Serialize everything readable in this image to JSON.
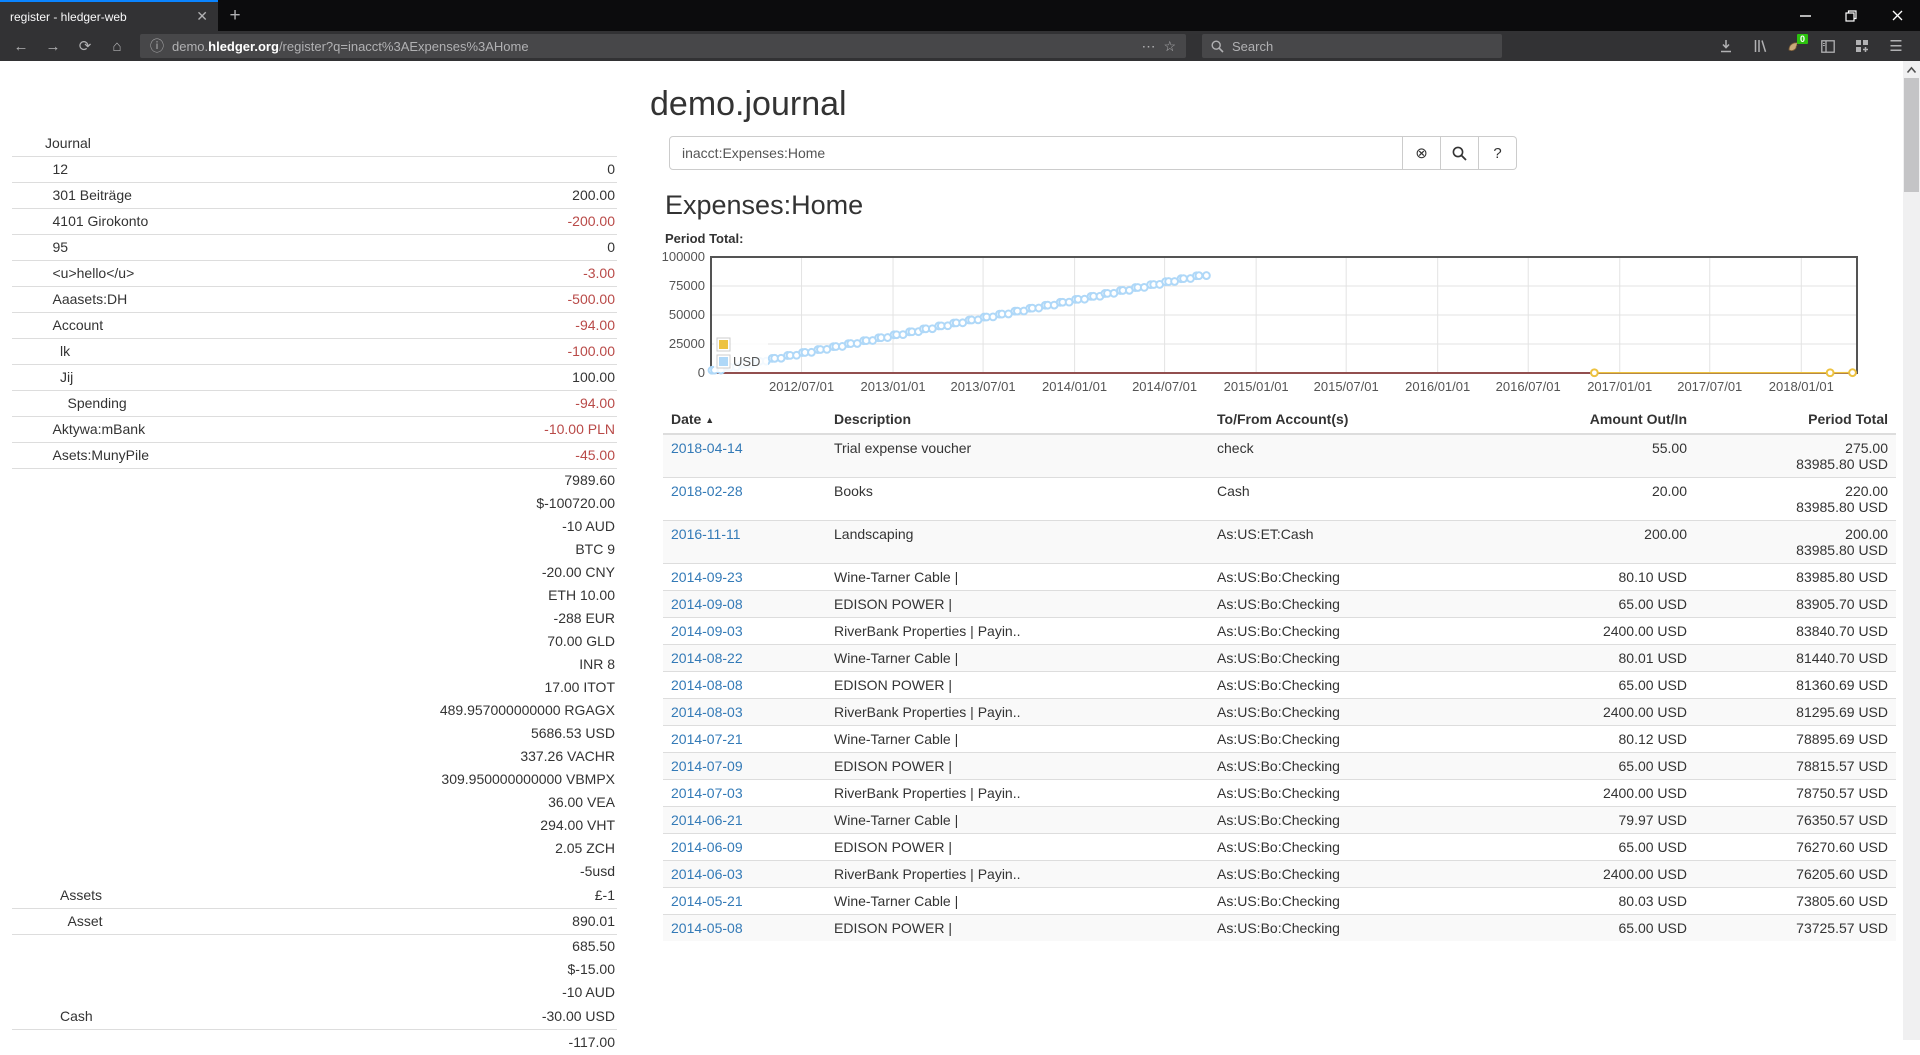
{
  "browser": {
    "tab_title": "register - hledger-web",
    "new_tab_label": "+",
    "url_scheme_prefix": "demo.",
    "url_domain": "hledger.org",
    "url_path": "/register?q=inacct%3AExpenses%3AHome",
    "search_placeholder": "Search",
    "extension_badge": "0",
    "icons": [
      "back",
      "forward",
      "reload",
      "home",
      "info",
      "overflow-dots",
      "bookmark-star",
      "download",
      "library",
      "extension",
      "sidebar",
      "grid-add",
      "menu",
      "minimize",
      "restore",
      "close"
    ]
  },
  "page": {
    "title": "demo.journal",
    "query_value": "inacct:Expenses:Home",
    "clear_button": "⊗",
    "help_button": "?",
    "heading": "Expenses:Home",
    "chart_label": "Period Total:"
  },
  "sidebar": {
    "rows": [
      {
        "label": "Journal",
        "indent": 0,
        "value": "",
        "neg": false,
        "pre": []
      },
      {
        "label": "12",
        "indent": 1,
        "value": "0",
        "neg": false,
        "pre": []
      },
      {
        "label": "301 Beiträge",
        "indent": 1,
        "value": "200.00",
        "neg": false,
        "pre": []
      },
      {
        "label": "4101 Girokonto",
        "indent": 1,
        "value": "-200.00",
        "neg": true,
        "pre": []
      },
      {
        "label": "95",
        "indent": 1,
        "value": "0",
        "neg": false,
        "pre": []
      },
      {
        "label": "<u>hello</u>",
        "indent": 1,
        "value": "-3.00",
        "neg": true,
        "pre": []
      },
      {
        "label": "Aaasets:DH",
        "indent": 1,
        "value": "-500.00",
        "neg": true,
        "pre": []
      },
      {
        "label": "Account",
        "indent": 1,
        "value": "-94.00",
        "neg": true,
        "pre": []
      },
      {
        "label": "lk",
        "indent": 2,
        "value": "-100.00",
        "neg": true,
        "pre": []
      },
      {
        "label": "Jij",
        "indent": 2,
        "value": "100.00",
        "neg": false,
        "pre": []
      },
      {
        "label": "Spending",
        "indent": 3,
        "value": "-94.00",
        "neg": true,
        "pre": []
      },
      {
        "label": "Aktywa:mBank",
        "indent": 1,
        "value": "-10.00 PLN",
        "neg": true,
        "pre": []
      },
      {
        "label": "Asets:MunyPile",
        "indent": 1,
        "value": "-45.00",
        "neg": true,
        "pre": []
      },
      {
        "label": "Assets",
        "indent": 2,
        "value": "£-1",
        "neg": false,
        "pre": [
          "7989.60",
          "$-100720.00",
          "-10 AUD",
          "BTC 9",
          "-20.00 CNY",
          "ETH 10.00",
          "-288 EUR",
          "70.00 GLD",
          "INR 8",
          "17.00 ITOT",
          "489.957000000000 RGAGX",
          "5686.53 USD",
          "337.26 VACHR",
          "309.950000000000 VBMPX",
          "36.00 VEA",
          "294.00 VHT",
          "2.05 ZCH",
          "-5usd"
        ]
      },
      {
        "label": "Asset",
        "indent": 3,
        "value": "890.01",
        "neg": false,
        "pre": []
      },
      {
        "label": "Cash",
        "indent": 2,
        "value": "-30.00 USD",
        "neg": false,
        "pre": [
          "685.50",
          "$-15.00",
          "-10 AUD"
        ]
      },
      {
        "label": "",
        "indent": 2,
        "value": "-117.00",
        "neg": false,
        "pre": [],
        "noborder": true
      }
    ]
  },
  "register": {
    "columns": [
      "Date",
      "Description",
      "To/From Account(s)",
      "Amount Out/In",
      "Period Total"
    ],
    "sort_arrow": "▲",
    "rows": [
      {
        "date": "2018-04-14",
        "desc": "Trial expense voucher",
        "acct": "check",
        "amount": "55.00",
        "period": [
          "275.00",
          "83985.80 USD"
        ]
      },
      {
        "date": "2018-02-28",
        "desc": "Books",
        "acct": "Cash",
        "amount": "20.00",
        "period": [
          "220.00",
          "83985.80 USD"
        ]
      },
      {
        "date": "2016-11-11",
        "desc": "Landscaping",
        "acct": "As:US:ET:Cash",
        "amount": "200.00",
        "period": [
          "200.00",
          "83985.80 USD"
        ]
      },
      {
        "date": "2014-09-23",
        "desc": "Wine-Tarner Cable |",
        "acct": "As:US:Bo:Checking",
        "amount": "80.10 USD",
        "period": [
          "83985.80 USD"
        ]
      },
      {
        "date": "2014-09-08",
        "desc": "EDISON POWER |",
        "acct": "As:US:Bo:Checking",
        "amount": "65.00 USD",
        "period": [
          "83905.70 USD"
        ]
      },
      {
        "date": "2014-09-03",
        "desc": "RiverBank Properties | Payin..",
        "acct": "As:US:Bo:Checking",
        "amount": "2400.00 USD",
        "period": [
          "83840.70 USD"
        ]
      },
      {
        "date": "2014-08-22",
        "desc": "Wine-Tarner Cable |",
        "acct": "As:US:Bo:Checking",
        "amount": "80.01 USD",
        "period": [
          "81440.70 USD"
        ]
      },
      {
        "date": "2014-08-08",
        "desc": "EDISON POWER |",
        "acct": "As:US:Bo:Checking",
        "amount": "65.00 USD",
        "period": [
          "81360.69 USD"
        ]
      },
      {
        "date": "2014-08-03",
        "desc": "RiverBank Properties | Payin..",
        "acct": "As:US:Bo:Checking",
        "amount": "2400.00 USD",
        "period": [
          "81295.69 USD"
        ]
      },
      {
        "date": "2014-07-21",
        "desc": "Wine-Tarner Cable |",
        "acct": "As:US:Bo:Checking",
        "amount": "80.12 USD",
        "period": [
          "78895.69 USD"
        ]
      },
      {
        "date": "2014-07-09",
        "desc": "EDISON POWER |",
        "acct": "As:US:Bo:Checking",
        "amount": "65.00 USD",
        "period": [
          "78815.57 USD"
        ]
      },
      {
        "date": "2014-07-03",
        "desc": "RiverBank Properties | Payin..",
        "acct": "As:US:Bo:Checking",
        "amount": "2400.00 USD",
        "period": [
          "78750.57 USD"
        ]
      },
      {
        "date": "2014-06-21",
        "desc": "Wine-Tarner Cable |",
        "acct": "As:US:Bo:Checking",
        "amount": "79.97 USD",
        "period": [
          "76350.57 USD"
        ]
      },
      {
        "date": "2014-06-09",
        "desc": "EDISON POWER |",
        "acct": "As:US:Bo:Checking",
        "amount": "65.00 USD",
        "period": [
          "76270.60 USD"
        ]
      },
      {
        "date": "2014-06-03",
        "desc": "RiverBank Properties | Payin..",
        "acct": "As:US:Bo:Checking",
        "amount": "2400.00 USD",
        "period": [
          "76205.60 USD"
        ]
      },
      {
        "date": "2014-05-21",
        "desc": "Wine-Tarner Cable |",
        "acct": "As:US:Bo:Checking",
        "amount": "80.03 USD",
        "period": [
          "73805.60 USD"
        ]
      },
      {
        "date": "2014-05-08",
        "desc": "EDISON POWER |",
        "acct": "As:US:Bo:Checking",
        "amount": "65.00 USD",
        "period": [
          "73725.57 USD"
        ]
      }
    ]
  },
  "chart_data": {
    "type": "line",
    "title": "Period Total:",
    "ylim": [
      0,
      100000
    ],
    "y_ticks": [
      0,
      25000,
      50000,
      75000,
      100000
    ],
    "x_range": [
      "2012-01-01",
      "2018-04-23"
    ],
    "x_ticks": [
      "2012/07/01",
      "2013/01/01",
      "2013/07/01",
      "2014/01/01",
      "2014/07/01",
      "2015/01/01",
      "2015/07/01",
      "2016/01/01",
      "2016/07/01",
      "2017/01/01",
      "2017/07/01",
      "2018/01/01"
    ],
    "grid": true,
    "legend_position": "sw",
    "series": [
      {
        "name": "zero-baseline",
        "color": "#cb4b4b",
        "in_legend": false,
        "markers": false,
        "points": [
          [
            "2012-01-01",
            0
          ],
          [
            "2018-04-23",
            0
          ]
        ]
      },
      {
        "name": "",
        "color": "#edc240",
        "in_legend": true,
        "markers": true,
        "points": [
          [
            "2016-11-11",
            200
          ],
          [
            "2018-02-28",
            220
          ],
          [
            "2018-04-14",
            275
          ]
        ]
      },
      {
        "name": "USD",
        "color": "#afd8f8",
        "in_legend": true,
        "markers": true,
        "points": [
          [
            "2012-01-03",
            2400
          ],
          [
            "2012-01-08",
            2465
          ],
          [
            "2012-01-21",
            2545
          ],
          [
            "2012-02-03",
            4945
          ],
          [
            "2012-02-08",
            5010
          ],
          [
            "2012-02-21",
            5090
          ],
          [
            "2012-03-03",
            7490
          ],
          [
            "2012-03-08",
            7555
          ],
          [
            "2012-03-21",
            7635
          ],
          [
            "2012-04-03",
            10035
          ],
          [
            "2012-04-08",
            10100
          ],
          [
            "2012-04-21",
            10180
          ],
          [
            "2012-05-03",
            12580
          ],
          [
            "2012-05-08",
            12645
          ],
          [
            "2012-05-21",
            12725
          ],
          [
            "2012-06-03",
            15125
          ],
          [
            "2012-06-08",
            15190
          ],
          [
            "2012-06-21",
            15270
          ],
          [
            "2012-07-03",
            17670
          ],
          [
            "2012-07-08",
            17735
          ],
          [
            "2012-07-21",
            17815
          ],
          [
            "2012-08-03",
            20215
          ],
          [
            "2012-08-08",
            20280
          ],
          [
            "2012-08-21",
            20360
          ],
          [
            "2012-09-03",
            22760
          ],
          [
            "2012-09-08",
            22825
          ],
          [
            "2012-09-21",
            22905
          ],
          [
            "2012-10-03",
            25305
          ],
          [
            "2012-10-08",
            25370
          ],
          [
            "2012-10-21",
            25450
          ],
          [
            "2012-11-03",
            27850
          ],
          [
            "2012-11-08",
            27915
          ],
          [
            "2012-11-21",
            27995
          ],
          [
            "2012-12-03",
            30395
          ],
          [
            "2012-12-08",
            30460
          ],
          [
            "2012-12-21",
            30540
          ],
          [
            "2013-01-03",
            32940
          ],
          [
            "2013-01-08",
            33005
          ],
          [
            "2013-01-21",
            33085
          ],
          [
            "2013-02-03",
            35485
          ],
          [
            "2013-02-08",
            35550
          ],
          [
            "2013-02-21",
            35630
          ],
          [
            "2013-03-03",
            38030
          ],
          [
            "2013-03-08",
            38095
          ],
          [
            "2013-03-21",
            38175
          ],
          [
            "2013-04-03",
            40575
          ],
          [
            "2013-04-08",
            40640
          ],
          [
            "2013-04-21",
            40720
          ],
          [
            "2013-05-03",
            43120
          ],
          [
            "2013-05-08",
            43185
          ],
          [
            "2013-05-21",
            43265
          ],
          [
            "2013-06-03",
            45665
          ],
          [
            "2013-06-08",
            45730
          ],
          [
            "2013-06-21",
            45810
          ],
          [
            "2013-07-03",
            48210
          ],
          [
            "2013-07-08",
            48275
          ],
          [
            "2013-07-21",
            48355
          ],
          [
            "2013-08-03",
            50755
          ],
          [
            "2013-08-08",
            50820
          ],
          [
            "2013-08-21",
            50900
          ],
          [
            "2013-09-03",
            53300
          ],
          [
            "2013-09-08",
            53365
          ],
          [
            "2013-09-21",
            53445
          ],
          [
            "2013-10-03",
            55845
          ],
          [
            "2013-10-08",
            55910
          ],
          [
            "2013-10-21",
            55990
          ],
          [
            "2013-11-03",
            58390
          ],
          [
            "2013-11-08",
            58455
          ],
          [
            "2013-11-21",
            58535
          ],
          [
            "2013-12-03",
            60935
          ],
          [
            "2013-12-08",
            61000
          ],
          [
            "2013-12-21",
            61080
          ],
          [
            "2014-01-03",
            63480
          ],
          [
            "2014-01-08",
            63545
          ],
          [
            "2014-01-21",
            63625
          ],
          [
            "2014-02-03",
            66025
          ],
          [
            "2014-02-08",
            66090
          ],
          [
            "2014-02-21",
            66170
          ],
          [
            "2014-03-03",
            68570
          ],
          [
            "2014-03-08",
            68635
          ],
          [
            "2014-03-21",
            68715
          ],
          [
            "2014-04-03",
            71115
          ],
          [
            "2014-04-08",
            71180
          ],
          [
            "2014-04-21",
            71260
          ],
          [
            "2014-05-03",
            73660.57
          ],
          [
            "2014-05-08",
            73725.57
          ],
          [
            "2014-05-21",
            73805.6
          ],
          [
            "2014-06-03",
            76205.6
          ],
          [
            "2014-06-09",
            76270.6
          ],
          [
            "2014-06-21",
            76350.57
          ],
          [
            "2014-07-03",
            78750.57
          ],
          [
            "2014-07-09",
            78815.57
          ],
          [
            "2014-07-21",
            78895.69
          ],
          [
            "2014-08-03",
            81295.69
          ],
          [
            "2014-08-08",
            81360.69
          ],
          [
            "2014-08-22",
            81440.7
          ],
          [
            "2014-09-03",
            83840.7
          ],
          [
            "2014-09-08",
            83905.7
          ],
          [
            "2014-09-23",
            83985.8
          ]
        ]
      }
    ]
  }
}
